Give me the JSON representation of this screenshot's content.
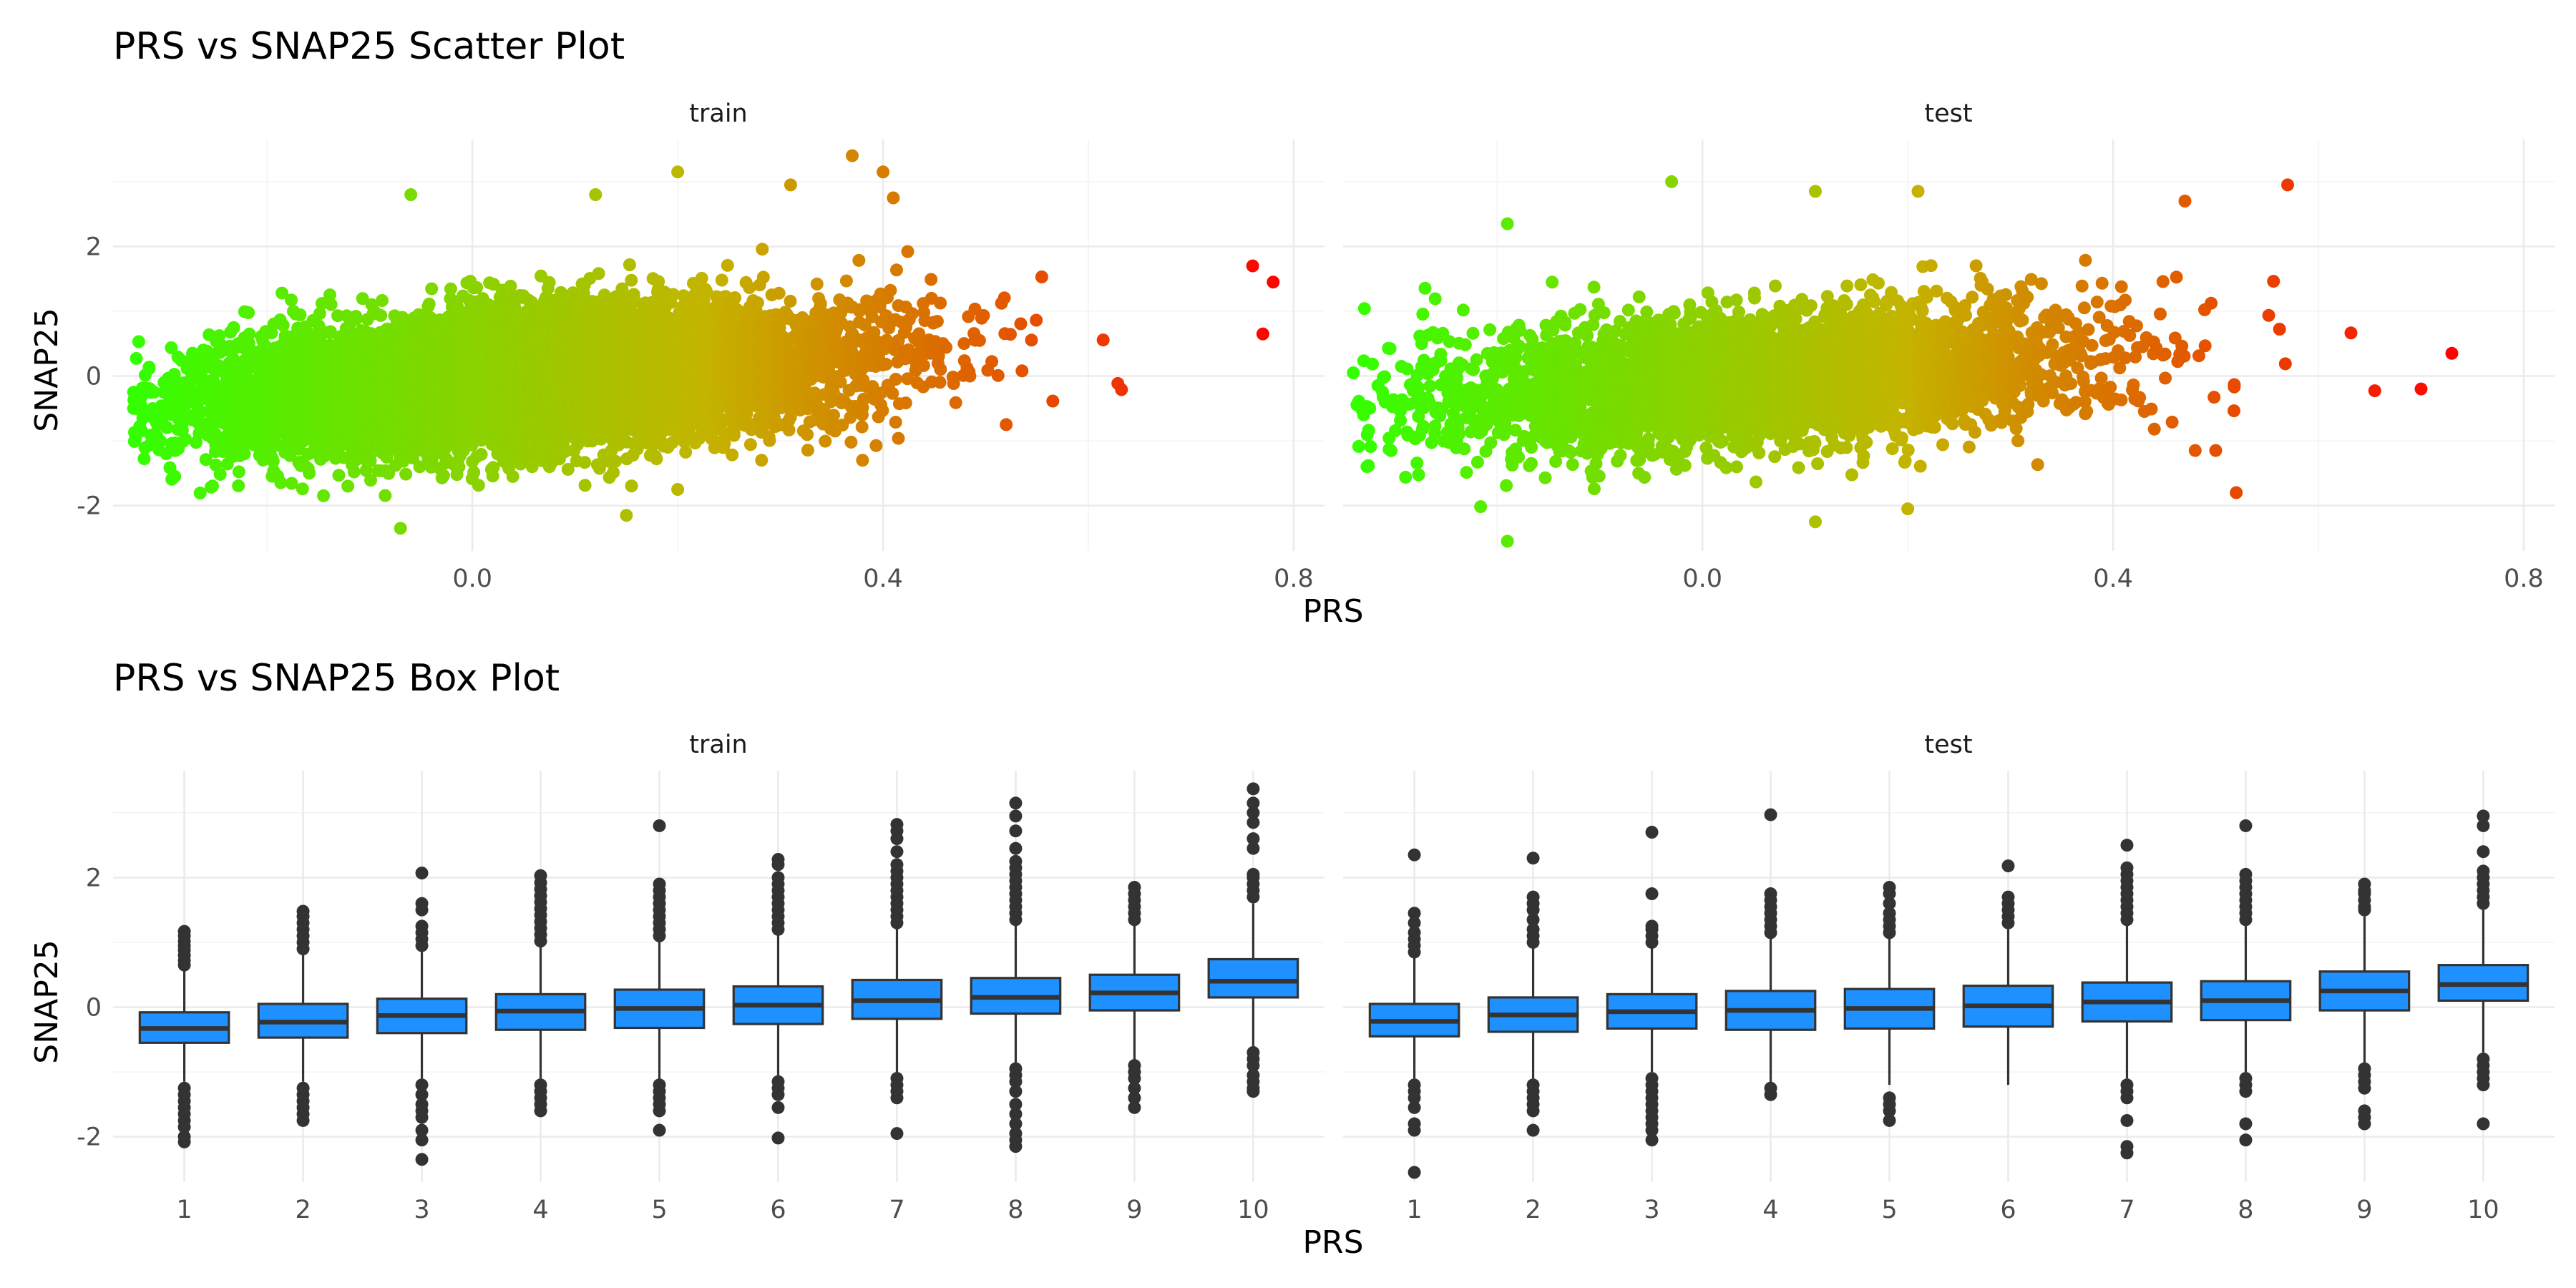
{
  "colors": {
    "low": "#33ff00",
    "mid": "#c4b400",
    "high": "#ff0000",
    "box_fill": "#1e90ff",
    "box_line": "#333333"
  },
  "chart_data": [
    {
      "type": "scatter",
      "title": "PRS vs SNAP25 Scatter Plot",
      "xlabel": "PRS",
      "ylabel": "SNAP25",
      "facets": [
        "train",
        "test"
      ],
      "x_ticks": [
        0.0,
        0.4,
        0.8
      ],
      "x_tick_labels": [
        "0.0",
        "0.4",
        "0.8"
      ],
      "y_ticks": [
        -2,
        0,
        2
      ],
      "y_tick_labels": [
        "-2",
        "0",
        "2"
      ],
      "ylim": [
        -2.7,
        3.65
      ],
      "grid": true,
      "color_by": "x",
      "panels": [
        {
          "facet": "train",
          "xlim": [
            -0.35,
            0.83
          ],
          "n_points": 9000,
          "x_range": [
            -0.33,
            0.79
          ],
          "x_center": 0.05,
          "x_sd": 0.155,
          "trend": {
            "intercept": -0.05,
            "slope": 1.05
          },
          "noise_sd": 0.5,
          "outliers": [
            [
              -0.06,
              2.8
            ],
            [
              0.2,
              3.15
            ],
            [
              0.37,
              3.4
            ],
            [
              0.4,
              3.15
            ],
            [
              0.31,
              2.95
            ],
            [
              0.41,
              2.75
            ],
            [
              0.12,
              2.8
            ],
            [
              -0.07,
              -2.35
            ],
            [
              0.15,
              -2.15
            ],
            [
              0.76,
              1.7
            ],
            [
              0.78,
              1.45
            ],
            [
              0.77,
              0.65
            ],
            [
              -0.33,
              -0.5
            ],
            [
              -0.33,
              -0.25
            ],
            [
              -0.31,
              -0.25
            ],
            [
              0.2,
              -1.75
            ],
            [
              0.38,
              -1.3
            ],
            [
              0.52,
              -0.75
            ]
          ]
        },
        {
          "facet": "test",
          "xlim": [
            -0.35,
            0.83
          ],
          "n_points": 4000,
          "x_range": [
            -0.34,
            0.74
          ],
          "x_center": 0.05,
          "x_sd": 0.155,
          "trend": {
            "intercept": -0.05,
            "slope": 1.05
          },
          "noise_sd": 0.5,
          "outliers": [
            [
              -0.19,
              2.35
            ],
            [
              -0.03,
              3.0
            ],
            [
              0.11,
              2.85
            ],
            [
              0.21,
              2.85
            ],
            [
              0.57,
              2.95
            ],
            [
              0.47,
              2.7
            ],
            [
              -0.19,
              -2.55
            ],
            [
              0.11,
              -2.25
            ],
            [
              0.52,
              -1.8
            ],
            [
              0.5,
              -1.15
            ],
            [
              0.48,
              -1.15
            ],
            [
              0.7,
              -0.2
            ],
            [
              -0.34,
              0.05
            ],
            [
              -0.33,
              -0.6
            ],
            [
              0.73,
              0.35
            ],
            [
              0.2,
              -2.05
            ]
          ]
        }
      ]
    },
    {
      "type": "box",
      "title": "PRS vs SNAP25 Box Plot",
      "xlabel": "PRS",
      "ylabel": "SNAP25",
      "facets": [
        "train",
        "test"
      ],
      "categories": [
        "1",
        "2",
        "3",
        "4",
        "5",
        "6",
        "7",
        "8",
        "9",
        "10"
      ],
      "y_ticks": [
        -2,
        0,
        2
      ],
      "y_tick_labels": [
        "-2",
        "0",
        "2"
      ],
      "ylim": [
        -2.7,
        3.65
      ],
      "grid": true,
      "panels": [
        {
          "facet": "train",
          "boxes": [
            {
              "q1": -0.55,
              "median": -0.33,
              "q3": -0.08,
              "lo": -1.15,
              "hi": 0.6,
              "outliers": [
                0.65,
                0.72,
                0.8,
                0.88,
                0.95,
                1.02,
                1.1,
                1.17,
                -1.25,
                -1.35,
                -1.45,
                -1.55,
                -1.65,
                -1.75,
                -1.85,
                -2.0,
                -2.08
              ]
            },
            {
              "q1": -0.47,
              "median": -0.23,
              "q3": 0.05,
              "lo": -1.15,
              "hi": 0.85,
              "outliers": [
                0.9,
                1.0,
                1.1,
                1.2,
                1.3,
                1.4,
                1.48,
                -1.25,
                -1.35,
                -1.45,
                -1.55,
                -1.65,
                -1.75
              ]
            },
            {
              "q1": -0.4,
              "median": -0.13,
              "q3": 0.13,
              "lo": -1.1,
              "hi": 0.9,
              "outliers": [
                0.95,
                1.05,
                1.15,
                1.25,
                1.5,
                1.6,
                2.07,
                -1.2,
                -1.35,
                -1.5,
                -1.6,
                -1.7,
                -1.9,
                -2.05,
                -2.35
              ]
            },
            {
              "q1": -0.35,
              "median": -0.06,
              "q3": 0.2,
              "lo": -1.1,
              "hi": 0.95,
              "outliers": [
                1.02,
                1.12,
                1.22,
                1.32,
                1.42,
                1.52,
                1.62,
                1.72,
                1.82,
                1.92,
                2.03,
                -1.2,
                -1.3,
                -1.4,
                -1.5,
                -1.6
              ]
            },
            {
              "q1": -0.32,
              "median": -0.02,
              "q3": 0.27,
              "lo": -1.15,
              "hi": 1.05,
              "outliers": [
                1.1,
                1.2,
                1.3,
                1.4,
                1.5,
                1.6,
                1.7,
                1.8,
                1.9,
                2.8,
                -1.2,
                -1.3,
                -1.4,
                -1.5,
                -1.6,
                -1.9
              ]
            },
            {
              "q1": -0.26,
              "median": 0.03,
              "q3": 0.32,
              "lo": -1.1,
              "hi": 1.15,
              "outliers": [
                1.2,
                1.3,
                1.4,
                1.5,
                1.6,
                1.7,
                1.8,
                1.9,
                2.0,
                2.2,
                2.28,
                -1.15,
                -1.25,
                -1.35,
                -1.55,
                -2.02
              ]
            },
            {
              "q1": -0.18,
              "median": 0.1,
              "q3": 0.42,
              "lo": -1.05,
              "hi": 1.25,
              "outliers": [
                1.3,
                1.4,
                1.5,
                1.6,
                1.7,
                1.8,
                1.9,
                2.0,
                2.1,
                2.2,
                2.4,
                2.6,
                2.72,
                2.82,
                -1.1,
                -1.2,
                -1.3,
                -1.4,
                -1.95
              ]
            },
            {
              "q1": -0.1,
              "median": 0.15,
              "q3": 0.45,
              "lo": -0.85,
              "hi": 1.3,
              "outliers": [
                1.35,
                1.45,
                1.55,
                1.65,
                1.75,
                1.85,
                1.95,
                2.05,
                2.15,
                2.25,
                2.45,
                2.72,
                2.95,
                3.15,
                -0.95,
                -1.05,
                -1.15,
                -1.3,
                -1.5,
                -1.65,
                -1.8,
                -1.95,
                -2.05,
                -2.15
              ]
            },
            {
              "q1": -0.05,
              "median": 0.22,
              "q3": 0.5,
              "lo": -0.85,
              "hi": 1.3,
              "outliers": [
                1.35,
                1.45,
                1.55,
                1.65,
                1.75,
                1.85,
                -0.9,
                -1.0,
                -1.1,
                -1.25,
                -1.4,
                -1.55
              ]
            },
            {
              "q1": 0.15,
              "median": 0.4,
              "q3": 0.74,
              "lo": -0.6,
              "hi": 1.6,
              "outliers": [
                1.7,
                1.8,
                1.9,
                2.0,
                2.05,
                2.45,
                2.6,
                2.85,
                3.0,
                3.15,
                3.37,
                -0.7,
                -0.8,
                -0.9,
                -1.05,
                -1.15,
                -1.25,
                -1.3
              ]
            }
          ]
        },
        {
          "facet": "test",
          "boxes": [
            {
              "q1": -0.45,
              "median": -0.22,
              "q3": 0.05,
              "lo": -1.1,
              "hi": 0.8,
              "outliers": [
                0.85,
                0.95,
                1.05,
                1.15,
                1.3,
                1.45,
                2.35,
                -1.2,
                -1.3,
                -1.4,
                -1.55,
                -1.8,
                -1.9,
                -2.55
              ]
            },
            {
              "q1": -0.38,
              "median": -0.12,
              "q3": 0.15,
              "lo": -1.1,
              "hi": 0.95,
              "outliers": [
                1.0,
                1.1,
                1.2,
                1.35,
                1.5,
                1.6,
                1.7,
                2.3,
                -1.2,
                -1.3,
                -1.4,
                -1.5,
                -1.6,
                -1.9
              ]
            },
            {
              "q1": -0.33,
              "median": -0.07,
              "q3": 0.2,
              "lo": -1.0,
              "hi": 0.95,
              "outliers": [
                1.0,
                1.1,
                1.2,
                1.25,
                1.75,
                2.7,
                -1.1,
                -1.2,
                -1.3,
                -1.4,
                -1.5,
                -1.6,
                -1.7,
                -1.8,
                -1.9,
                -2.05
              ]
            },
            {
              "q1": -0.35,
              "median": -0.05,
              "q3": 0.25,
              "lo": -1.2,
              "hi": 1.1,
              "outliers": [
                1.15,
                1.25,
                1.35,
                1.45,
                1.55,
                1.65,
                1.75,
                2.97,
                -1.25,
                -1.35
              ]
            },
            {
              "q1": -0.33,
              "median": -0.02,
              "q3": 0.28,
              "lo": -1.2,
              "hi": 1.1,
              "outliers": [
                1.15,
                1.25,
                1.35,
                1.45,
                1.6,
                1.75,
                1.85,
                -1.4,
                -1.5,
                -1.6,
                -1.75
              ]
            },
            {
              "q1": -0.3,
              "median": 0.02,
              "q3": 0.33,
              "lo": -1.2,
              "hi": 1.2,
              "outliers": [
                1.3,
                1.4,
                1.5,
                1.6,
                1.7,
                2.18
              ]
            },
            {
              "q1": -0.22,
              "median": 0.08,
              "q3": 0.38,
              "lo": -1.1,
              "hi": 1.3,
              "outliers": [
                1.35,
                1.45,
                1.55,
                1.65,
                1.75,
                1.85,
                1.95,
                2.05,
                2.15,
                2.5,
                -1.2,
                -1.3,
                -1.4,
                -1.75,
                -2.15,
                -2.25
              ]
            },
            {
              "q1": -0.2,
              "median": 0.1,
              "q3": 0.4,
              "lo": -1.0,
              "hi": 1.3,
              "outliers": [
                1.35,
                1.45,
                1.55,
                1.65,
                1.75,
                1.85,
                1.95,
                2.05,
                2.8,
                -1.1,
                -1.2,
                -1.3,
                -1.8,
                -2.05
              ]
            },
            {
              "q1": -0.05,
              "median": 0.25,
              "q3": 0.55,
              "lo": -0.85,
              "hi": 1.4,
              "outliers": [
                1.5,
                1.55,
                1.65,
                1.75,
                1.8,
                1.9,
                -0.95,
                -1.05,
                -1.15,
                -1.25,
                -1.6,
                -1.7,
                -1.8
              ]
            },
            {
              "q1": 0.1,
              "median": 0.35,
              "q3": 0.65,
              "lo": -0.7,
              "hi": 1.5,
              "outliers": [
                1.6,
                1.7,
                1.8,
                1.9,
                2.0,
                2.1,
                2.4,
                2.8,
                2.95,
                -0.8,
                -0.9,
                -1.0,
                -1.1,
                -1.2,
                -1.8
              ]
            }
          ]
        }
      ]
    }
  ]
}
